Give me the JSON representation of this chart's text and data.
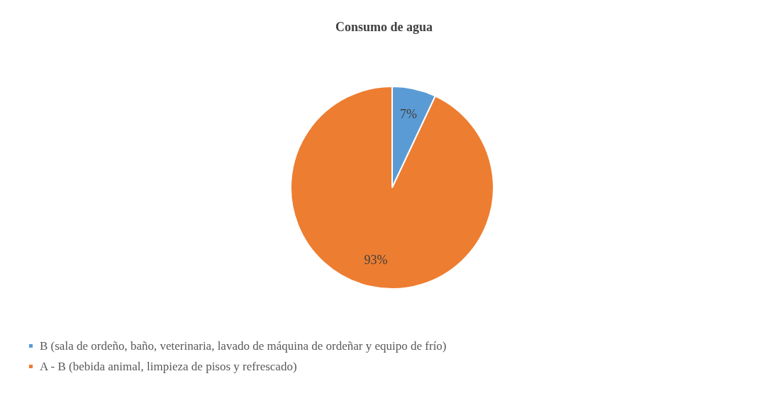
{
  "chart_data": {
    "type": "pie",
    "title": "Consumo de agua",
    "categories": [
      "B (sala de ordeño, baño, veterinaria, lavado de máquina de ordeñar y equipo de frío)",
      "A - B (bebida animal, limpieza de pisos y refrescado)"
    ],
    "values": [
      7,
      93
    ],
    "colors": [
      "#5b9bd5",
      "#ed7d31"
    ],
    "value_labels": [
      "7%",
      "93%"
    ],
    "legend": "bottom left"
  }
}
